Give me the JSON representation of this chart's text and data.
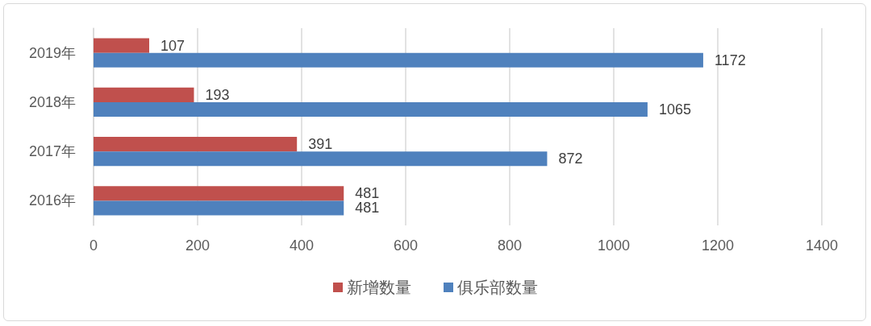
{
  "chart_data": {
    "type": "bar",
    "orientation": "horizontal",
    "categories": [
      "2019年",
      "2018年",
      "2017年",
      "2016年"
    ],
    "series": [
      {
        "name": "新增数量",
        "color": "#c0504d",
        "values": [
          107,
          193,
          391,
          481
        ]
      },
      {
        "name": "俱乐部数量",
        "color": "#4f81bd",
        "values": [
          1172,
          1065,
          872,
          481
        ]
      }
    ],
    "xlim": [
      0,
      1400
    ],
    "xticks": [
      0,
      200,
      400,
      600,
      800,
      1000,
      1200,
      1400
    ],
    "grid": "x",
    "legend": "bottom",
    "data_labels": true
  }
}
